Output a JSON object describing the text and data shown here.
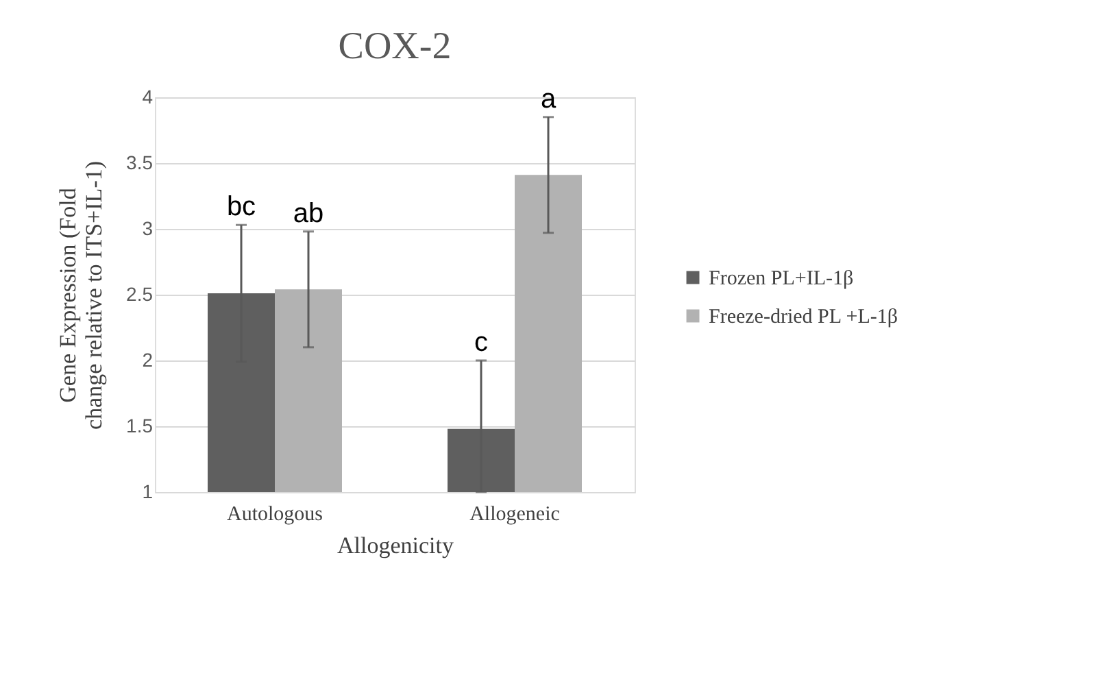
{
  "chart_data": {
    "type": "bar",
    "title": "COX-2",
    "xlabel": "Allogenicity",
    "ylabel": "Gene Expression (Fold change relative to ITS+IL-1)",
    "categories": [
      "Autologous",
      "Allogeneic"
    ],
    "series": [
      {
        "name": "Frozen PL+IL-1β",
        "color": "#5f5f5f",
        "values": [
          2.51,
          1.48
        ],
        "errors": [
          0.52,
          [
            1,
            2.0
          ]
        ]
      },
      {
        "name": "Freeze-dried PL +L-1β",
        "color": "#b2b2b2",
        "values": [
          2.54,
          3.41
        ],
        "errors": [
          0.44,
          0.44
        ]
      }
    ],
    "ylim": [
      1,
      4
    ],
    "yticks": [
      1,
      1.5,
      2,
      2.5,
      3,
      3.5,
      4
    ],
    "grid": "y",
    "legend": "right",
    "annotations": [
      "bc",
      "ab",
      "c",
      "a"
    ]
  }
}
